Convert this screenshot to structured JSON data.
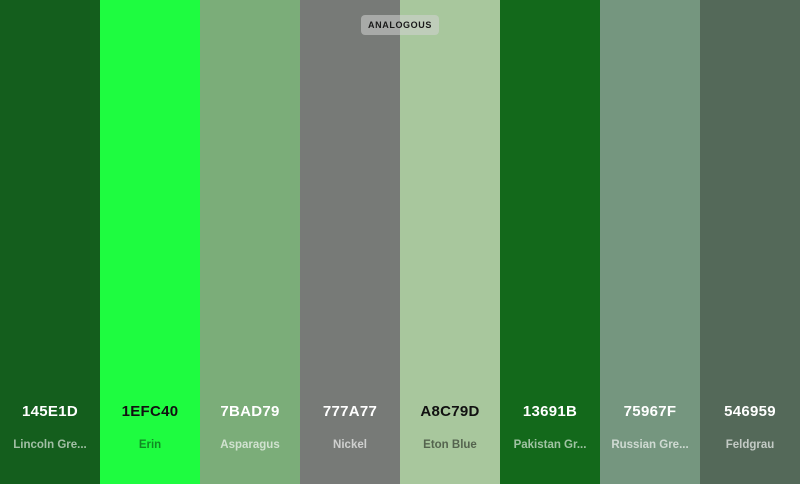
{
  "mode_badge": "ANALOGOUS",
  "swatches": [
    {
      "hex": "145E1D",
      "name": "Lincoln Gre...",
      "color": "#145E1D",
      "hex_color": "#ffffff",
      "name_color": "rgba(255,255,255,0.6)"
    },
    {
      "hex": "1EFC40",
      "name": "Erin",
      "color": "#1EFC40",
      "hex_color": "#111111",
      "name_color": "rgba(0,0,0,0.45)"
    },
    {
      "hex": "7BAD79",
      "name": "Asparagus",
      "color": "#7BAD79",
      "hex_color": "#ffffff",
      "name_color": "rgba(255,255,255,0.65)"
    },
    {
      "hex": "777A77",
      "name": "Nickel",
      "color": "#777A77",
      "hex_color": "#ffffff",
      "name_color": "rgba(255,255,255,0.65)"
    },
    {
      "hex": "A8C79D",
      "name": "Eton Blue",
      "color": "#A8C79D",
      "hex_color": "#111111",
      "name_color": "rgba(0,0,0,0.5)"
    },
    {
      "hex": "13691B",
      "name": "Pakistan Gr...",
      "color": "#13691B",
      "hex_color": "#ffffff",
      "name_color": "rgba(255,255,255,0.6)"
    },
    {
      "hex": "75967F",
      "name": "Russian Gre...",
      "color": "#75967F",
      "hex_color": "#ffffff",
      "name_color": "rgba(255,255,255,0.65)"
    },
    {
      "hex": "546959",
      "name": "Feldgrau",
      "color": "#546959",
      "hex_color": "#ffffff",
      "name_color": "rgba(255,255,255,0.65)"
    }
  ]
}
